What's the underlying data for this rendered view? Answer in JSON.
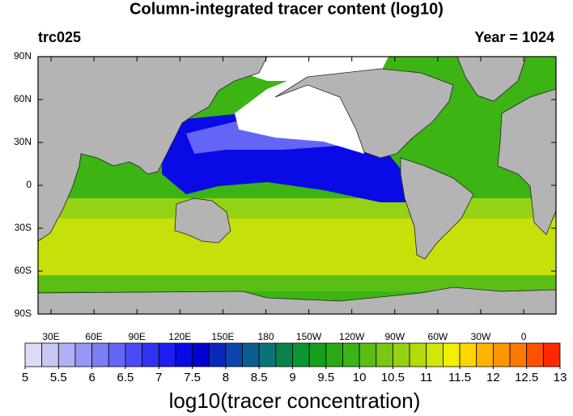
{
  "title": "Column-integrated tracer content (log10)",
  "left_label": "trc025",
  "right_label": "Year = 1024",
  "lat_labels": [
    "90N",
    "60N",
    "30N",
    "0",
    "30S",
    "60S",
    "90S"
  ],
  "lon_labels": [
    "30E",
    "60E",
    "90E",
    "120E",
    "150E",
    "180",
    "150W",
    "120W",
    "90W",
    "60W",
    "30W",
    "0"
  ],
  "colorbar": {
    "label": "log10(tracer concentration)",
    "ticks": [
      5,
      5.5,
      6,
      6.5,
      7,
      7.5,
      8,
      8.5,
      9,
      9.5,
      10,
      10.5,
      11,
      11.5,
      12,
      12.5,
      13
    ],
    "colors": [
      "#dcdcf5",
      "#c8c8f5",
      "#b0b0f5",
      "#9696f5",
      "#7d7df5",
      "#6464f5",
      "#4b4bf5",
      "#3232f5",
      "#1e1ef0",
      "#0a0ae6",
      "#0000d2",
      "#0a28be",
      "#0a46aa",
      "#0a5f91",
      "#0a7378",
      "#0a8250",
      "#0a9632",
      "#14a01e",
      "#28aa14",
      "#3cb414",
      "#5abe14",
      "#78c814",
      "#96d214",
      "#b4dc0a",
      "#d2e60a",
      "#f0f000",
      "#ffd700",
      "#ffb400",
      "#ff9600",
      "#ff7800",
      "#ff5000",
      "#ff2800"
    ]
  }
}
